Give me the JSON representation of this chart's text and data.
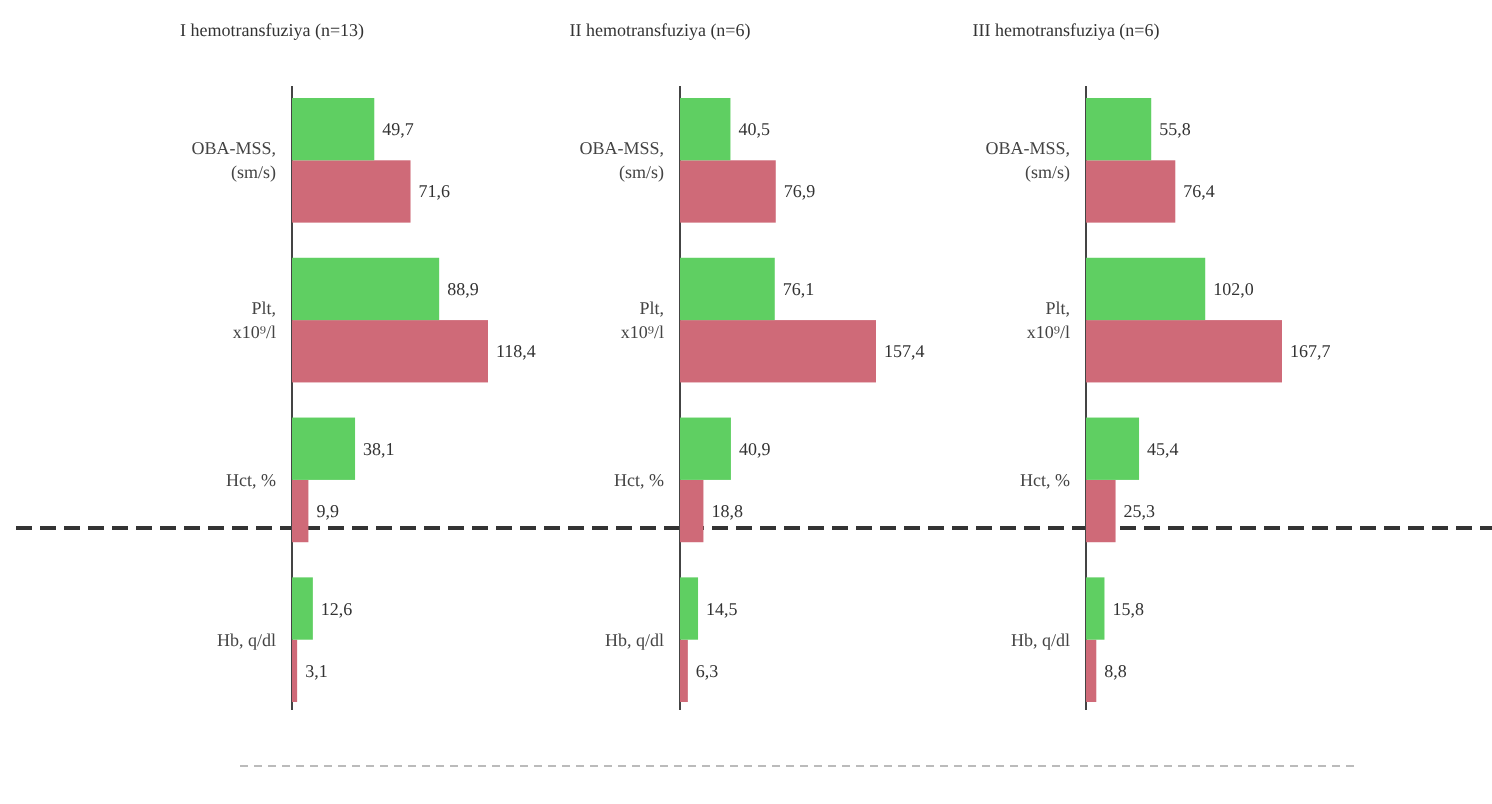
{
  "chart_data": [
    {
      "type": "bar",
      "orientation": "horizontal",
      "title": "I hemotransfuziya (n=13)",
      "categories": [
        "OBA-MSS, (sm/s)",
        "Plt, x10⁹/l",
        "Hct, %",
        "Hb, q/dl"
      ],
      "data_labels": true,
      "series": [
        {
          "color": "#5fcf62",
          "values": [
            49.7,
            88.9,
            38.1,
            12.6
          ],
          "value_labels": [
            "49,7",
            "88,9",
            "38,1",
            "12,6"
          ]
        },
        {
          "color": "#cf6a78",
          "values": [
            71.6,
            118.4,
            9.9,
            3.1
          ],
          "value_labels": [
            "71,6",
            "118,4",
            "9,9",
            "3,1"
          ]
        }
      ]
    },
    {
      "type": "bar",
      "orientation": "horizontal",
      "title": "II hemotransfuziya (n=6)",
      "categories": [
        "OBA-MSS, (sm/s)",
        "Plt, x10⁹/l",
        "Hct, %",
        "Hb, q/dl"
      ],
      "data_labels": true,
      "series": [
        {
          "color": "#5fcf62",
          "values": [
            40.5,
            76.1,
            40.9,
            14.5
          ],
          "value_labels": [
            "40,5",
            "76,1",
            "40,9",
            "14,5"
          ]
        },
        {
          "color": "#cf6a78",
          "values": [
            76.9,
            157.4,
            18.8,
            6.3
          ],
          "value_labels": [
            "76,9",
            "157,4",
            "18,8",
            "6,3"
          ]
        }
      ]
    },
    {
      "type": "bar",
      "orientation": "horizontal",
      "title": "III hemotransfuziya (n=6)",
      "categories": [
        "OBA-MSS, (sm/s)",
        "Plt, x10⁹/l",
        "Hct, %",
        "Hb, q/dl"
      ],
      "data_labels": true,
      "series": [
        {
          "color": "#5fcf62",
          "values": [
            55.8,
            102.0,
            45.4,
            15.8
          ],
          "value_labels": [
            "55,8",
            "102,0",
            "45,4",
            "15,8"
          ]
        },
        {
          "color": "#cf6a78",
          "values": [
            76.4,
            167.7,
            25.3,
            8.8
          ],
          "value_labels": [
            "76,4",
            "167,7",
            "25,3",
            "8,8"
          ]
        }
      ]
    }
  ]
}
